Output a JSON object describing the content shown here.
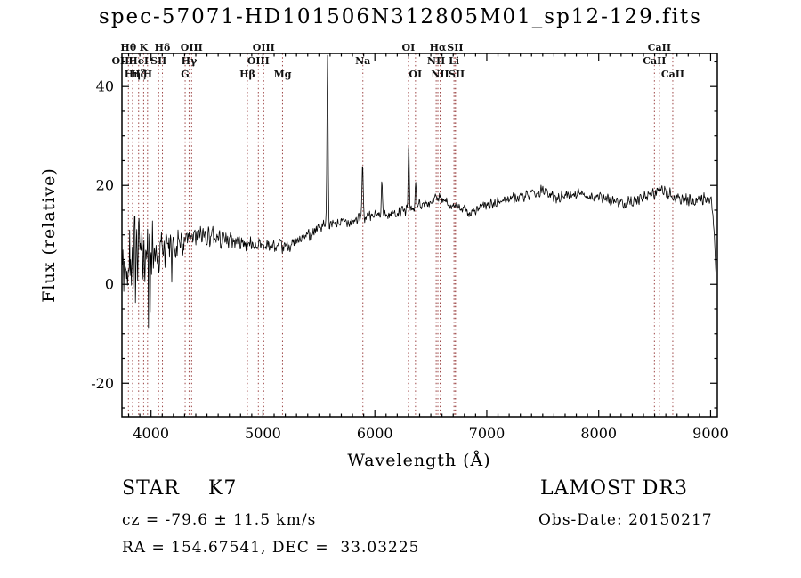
{
  "title": "spec-57071-HD101506N312805M01_sp12-129.fits",
  "chart_data": {
    "type": "line",
    "title": "spec-57071-HD101506N312805M01_sp12-129.fits",
    "xlabel": "Wavelength (Å)",
    "ylabel": "Flux (relative)",
    "xlim": [
      3740,
      9060
    ],
    "ylim": [
      -26.8,
      46.7
    ],
    "xticks": [
      4000,
      5000,
      6000,
      7000,
      8000,
      9000
    ],
    "yticks": [
      -20,
      0,
      20,
      40
    ],
    "x_minor_step": 100,
    "y_minor_step": 5,
    "grid": false,
    "line_color": "#000000",
    "marker_color": "#9c4444",
    "wavelength_start": 3745,
    "wavelength_end": 9050,
    "sample_step_angstrom": 4,
    "noise_seed": 42,
    "continuum_points": [
      [
        3745,
        3
      ],
      [
        3780,
        4
      ],
      [
        3820,
        5
      ],
      [
        3860,
        5.5
      ],
      [
        3900,
        5.5
      ],
      [
        3950,
        6
      ],
      [
        4000,
        6.5
      ],
      [
        4100,
        7
      ],
      [
        4200,
        7.5
      ],
      [
        4300,
        8.5
      ],
      [
        4400,
        9.5
      ],
      [
        4500,
        10
      ],
      [
        4600,
        9.5
      ],
      [
        4700,
        9
      ],
      [
        4800,
        8.5
      ],
      [
        4900,
        8
      ],
      [
        5000,
        8
      ],
      [
        5100,
        7.5
      ],
      [
        5200,
        7.5
      ],
      [
        5300,
        8.5
      ],
      [
        5400,
        10
      ],
      [
        5500,
        11.5
      ],
      [
        5600,
        12
      ],
      [
        5700,
        12.5
      ],
      [
        5800,
        13
      ],
      [
        5900,
        13.5
      ],
      [
        6000,
        14
      ],
      [
        6100,
        14
      ],
      [
        6200,
        14.5
      ],
      [
        6300,
        15
      ],
      [
        6400,
        16
      ],
      [
        6500,
        16.5
      ],
      [
        6550,
        17.5
      ],
      [
        6600,
        17
      ],
      [
        6700,
        16
      ],
      [
        6800,
        15
      ],
      [
        6870,
        14.5
      ],
      [
        6950,
        15.5
      ],
      [
        7000,
        16
      ],
      [
        7100,
        16.5
      ],
      [
        7200,
        17.5
      ],
      [
        7300,
        17.5
      ],
      [
        7400,
        18
      ],
      [
        7500,
        19
      ],
      [
        7600,
        17.5
      ],
      [
        7700,
        18
      ],
      [
        7800,
        18.5
      ],
      [
        7900,
        18
      ],
      [
        8000,
        17.5
      ],
      [
        8100,
        17
      ],
      [
        8200,
        16.5
      ],
      [
        8300,
        17
      ],
      [
        8400,
        17.5
      ],
      [
        8500,
        18.5
      ],
      [
        8550,
        19
      ],
      [
        8650,
        18
      ],
      [
        8750,
        17
      ],
      [
        8850,
        17
      ],
      [
        8950,
        17.5
      ],
      [
        9010,
        17
      ],
      [
        9030,
        11
      ],
      [
        9050,
        0.5
      ]
    ],
    "noise_amplitude_points": [
      [
        3745,
        7
      ],
      [
        3800,
        8
      ],
      [
        3850,
        8
      ],
      [
        3900,
        7
      ],
      [
        3950,
        6.5
      ],
      [
        4000,
        5.5
      ],
      [
        4050,
        4.8
      ],
      [
        4100,
        4.2
      ],
      [
        4200,
        3.4
      ],
      [
        4300,
        2.8
      ],
      [
        4400,
        2.3
      ],
      [
        4600,
        2
      ],
      [
        4800,
        1.7
      ],
      [
        5000,
        1.5
      ],
      [
        5300,
        1.3
      ],
      [
        5600,
        1.2
      ],
      [
        6000,
        1.1
      ],
      [
        6500,
        1.1
      ],
      [
        7000,
        1
      ],
      [
        7500,
        1.1
      ],
      [
        8000,
        1.1
      ],
      [
        8500,
        1.2
      ],
      [
        9000,
        1.3
      ]
    ],
    "sky_emission_spikes": [
      {
        "x": 5577,
        "peak": 46,
        "sigma": 5
      },
      {
        "x": 5891,
        "peak": 25,
        "sigma": 5
      },
      {
        "x": 6062,
        "peak": 22,
        "sigma": 5
      },
      {
        "x": 6302,
        "peak": 28,
        "sigma": 5
      },
      {
        "x": 6366,
        "peak": 20,
        "sigma": 5
      }
    ],
    "spectral_lines": [
      {
        "wavelength": 3727,
        "label": "OII",
        "row": 1
      },
      {
        "wavelength": 3798,
        "label": "Hθ",
        "row": 0
      },
      {
        "wavelength": 3835,
        "label": "Hη",
        "row": 2
      },
      {
        "wavelength": 3889,
        "label": "HeI",
        "row": 1
      },
      {
        "wavelength": 3889,
        "label": "Hζ",
        "row": 2
      },
      {
        "wavelength": 3934,
        "label": "K",
        "row": 0
      },
      {
        "wavelength": 3969,
        "label": "H",
        "row": 2
      },
      {
        "wavelength": 4068,
        "label": "SII",
        "row": 1
      },
      {
        "wavelength": 4102,
        "label": "Hδ",
        "row": 0
      },
      {
        "wavelength": 4305,
        "label": "G",
        "row": 2
      },
      {
        "wavelength": 4340,
        "label": "Hγ",
        "row": 1
      },
      {
        "wavelength": 4363,
        "label": "OIII",
        "row": 0
      },
      {
        "wavelength": 4861,
        "label": "Hβ",
        "row": 2
      },
      {
        "wavelength": 4959,
        "label": "OIII",
        "row": 1
      },
      {
        "wavelength": 5007,
        "label": "OIII",
        "row": 0
      },
      {
        "wavelength": 5175,
        "label": "Mg",
        "row": 2
      },
      {
        "wavelength": 5893,
        "label": "Na",
        "row": 1
      },
      {
        "wavelength": 6300,
        "label": "OI",
        "row": 0
      },
      {
        "wavelength": 6363,
        "label": "OI",
        "row": 2
      },
      {
        "wavelength": 6548,
        "label": "NII",
        "row": 1
      },
      {
        "wavelength": 6563,
        "label": "Hα",
        "row": 0
      },
      {
        "wavelength": 6583,
        "label": "NII",
        "row": 2
      },
      {
        "wavelength": 6707,
        "label": "Li",
        "row": 1
      },
      {
        "wavelength": 6717,
        "label": "SII",
        "row": 0
      },
      {
        "wavelength": 6731,
        "label": "SII",
        "row": 2
      },
      {
        "wavelength": 8498,
        "label": "CaII",
        "row": 1
      },
      {
        "wavelength": 8542,
        "label": "CaII",
        "row": 0
      },
      {
        "wavelength": 8662,
        "label": "CaII",
        "row": 2
      }
    ]
  },
  "annotations": {
    "class_label": "STAR    K7",
    "survey": "LAMOST DR3",
    "cz": "cz = -79.6 ± 11.5 km/s",
    "obs_date": "Obs-Date: 20150217",
    "coords": "RA = 154.67541, DEC =  33.03225"
  }
}
